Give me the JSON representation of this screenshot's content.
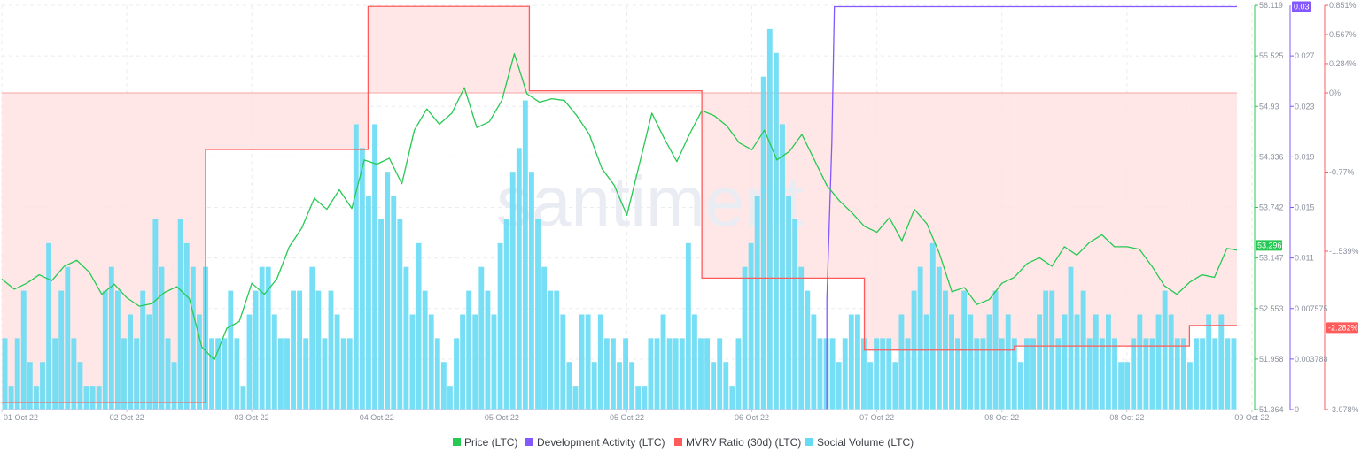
{
  "watermark": "santiment",
  "colors": {
    "price": "#26c953",
    "dev": "#8358ff",
    "mvrv": "#ff5b5b",
    "mvrv_fill": "#ffe3e3",
    "social": "#68dbf4",
    "grid": "#e9ecf0",
    "tick": "#8c929e"
  },
  "chart_data": {
    "type": "line",
    "x_tick_labels": [
      "01 Oct 22",
      "02 Oct 22",
      "03 Oct 22",
      "04 Oct 22",
      "05 Oct 22",
      "05 Oct 22",
      "06 Oct 22",
      "07 Oct 22",
      "08 Oct 22",
      "08 Oct 22",
      "09 Oct 22"
    ],
    "axes": {
      "price": {
        "ticks": [
          "56.119",
          "55.525",
          "54.93",
          "54.336",
          "53.742",
          "53.147",
          "52.553",
          "51.958",
          "51.364"
        ],
        "range": [
          51.364,
          56.119
        ]
      },
      "dev": {
        "ticks": [
          "0.03",
          "0.027",
          "0.023",
          "0.019",
          "0.015",
          "0.011",
          "0.007575",
          "0.003788",
          "0"
        ],
        "range": [
          0,
          0.03
        ]
      },
      "mvrv": {
        "ticks": [
          "0.851%",
          "0.567%",
          "0.284%",
          "0%",
          "-0.77%",
          "-1.539%",
          "-2.282%",
          "-3.078%"
        ],
        "range": [
          -3.078,
          0.851
        ]
      }
    },
    "current_values": {
      "price": "53.296",
      "dev": "0.03",
      "mvrv": "-2.282%"
    },
    "legend": [
      "Price (LTC)",
      "Development Activity (LTC)",
      "MVRV Ratio (30d) (LTC)",
      "Social Volume (LTC)"
    ],
    "grid": true,
    "legend_position": "bottom",
    "mvrv_steps": [
      {
        "x": 0,
        "v": -3.01
      },
      {
        "x": 1.63,
        "v": -0.55
      },
      {
        "x": 2.93,
        "v": 0.84
      },
      {
        "x": 4.22,
        "v": 0.02
      },
      {
        "x": 5.6,
        "v": -1.8
      },
      {
        "x": 6.9,
        "v": -2.5
      },
      {
        "x": 8.1,
        "v": -2.46
      },
      {
        "x": 9.5,
        "v": -2.26
      },
      {
        "x": 9.88,
        "v": -2.26
      }
    ],
    "dev_steps": [
      {
        "x": 0,
        "v": 0
      },
      {
        "x": 6.6,
        "v": 0
      },
      {
        "x": 6.6,
        "v": 0.0082
      },
      {
        "x": 6.64,
        "v": 0.0199
      },
      {
        "x": 6.66,
        "v": 0.0299
      },
      {
        "x": 9.88,
        "v": 0.0299
      }
    ],
    "price": [
      [
        0.0,
        52.9
      ],
      [
        0.1,
        52.78
      ],
      [
        0.2,
        52.85
      ],
      [
        0.3,
        52.95
      ],
      [
        0.4,
        52.88
      ],
      [
        0.5,
        53.05
      ],
      [
        0.6,
        53.12
      ],
      [
        0.7,
        52.98
      ],
      [
        0.8,
        52.72
      ],
      [
        0.9,
        52.84
      ],
      [
        1.0,
        52.68
      ],
      [
        1.1,
        52.58
      ],
      [
        1.2,
        52.61
      ],
      [
        1.3,
        52.74
      ],
      [
        1.4,
        52.81
      ],
      [
        1.5,
        52.67
      ],
      [
        1.6,
        52.1
      ],
      [
        1.7,
        51.95
      ],
      [
        1.8,
        52.32
      ],
      [
        1.9,
        52.4
      ],
      [
        2.0,
        52.85
      ],
      [
        2.1,
        52.72
      ],
      [
        2.2,
        52.9
      ],
      [
        2.3,
        53.28
      ],
      [
        2.4,
        53.5
      ],
      [
        2.5,
        53.85
      ],
      [
        2.6,
        53.72
      ],
      [
        2.7,
        53.95
      ],
      [
        2.8,
        53.73
      ],
      [
        2.9,
        54.3
      ],
      [
        3.0,
        54.25
      ],
      [
        3.1,
        54.32
      ],
      [
        3.2,
        54.02
      ],
      [
        3.3,
        54.65
      ],
      [
        3.4,
        54.9
      ],
      [
        3.5,
        54.72
      ],
      [
        3.6,
        54.85
      ],
      [
        3.7,
        55.15
      ],
      [
        3.8,
        54.68
      ],
      [
        3.9,
        54.75
      ],
      [
        4.0,
        55.0
      ],
      [
        4.1,
        55.55
      ],
      [
        4.2,
        55.08
      ],
      [
        4.3,
        54.98
      ],
      [
        4.4,
        55.02
      ],
      [
        4.5,
        55.0
      ],
      [
        4.6,
        54.82
      ],
      [
        4.7,
        54.6
      ],
      [
        4.8,
        54.2
      ],
      [
        4.9,
        54.0
      ],
      [
        5.0,
        53.65
      ],
      [
        5.1,
        54.25
      ],
      [
        5.2,
        54.85
      ],
      [
        5.3,
        54.55
      ],
      [
        5.4,
        54.28
      ],
      [
        5.5,
        54.6
      ],
      [
        5.6,
        54.88
      ],
      [
        5.7,
        54.82
      ],
      [
        5.8,
        54.7
      ],
      [
        5.9,
        54.5
      ],
      [
        6.0,
        54.42
      ],
      [
        6.1,
        54.65
      ],
      [
        6.2,
        54.3
      ],
      [
        6.3,
        54.4
      ],
      [
        6.4,
        54.6
      ],
      [
        6.5,
        54.3
      ],
      [
        6.6,
        54.0
      ],
      [
        6.7,
        53.82
      ],
      [
        6.8,
        53.68
      ],
      [
        6.9,
        53.52
      ],
      [
        7.0,
        53.45
      ],
      [
        7.1,
        53.62
      ],
      [
        7.2,
        53.35
      ],
      [
        7.3,
        53.72
      ],
      [
        7.4,
        53.55
      ],
      [
        7.5,
        53.2
      ],
      [
        7.6,
        52.75
      ],
      [
        7.7,
        52.8
      ],
      [
        7.8,
        52.6
      ],
      [
        7.9,
        52.66
      ],
      [
        8.0,
        52.85
      ],
      [
        8.1,
        52.92
      ],
      [
        8.2,
        53.08
      ],
      [
        8.3,
        53.15
      ],
      [
        8.4,
        53.05
      ],
      [
        8.5,
        53.28
      ],
      [
        8.6,
        53.18
      ],
      [
        8.7,
        53.33
      ],
      [
        8.8,
        53.42
      ],
      [
        8.9,
        53.28
      ],
      [
        9.0,
        53.28
      ],
      [
        9.1,
        53.25
      ],
      [
        9.2,
        53.05
      ],
      [
        9.3,
        52.82
      ],
      [
        9.4,
        52.72
      ],
      [
        9.5,
        52.86
      ],
      [
        9.6,
        52.95
      ],
      [
        9.7,
        52.92
      ],
      [
        9.8,
        53.26
      ],
      [
        9.88,
        53.24
      ]
    ],
    "social": [
      3,
      1,
      3,
      5,
      2,
      1,
      2,
      7,
      3,
      5,
      6,
      3,
      2,
      1,
      1,
      1,
      5,
      6,
      5,
      3,
      4,
      3,
      5,
      4,
      8,
      6,
      3,
      2,
      8,
      7,
      6,
      4,
      6,
      3,
      3,
      3,
      5,
      3,
      1,
      4,
      5,
      6,
      6,
      4,
      3,
      3,
      5,
      5,
      3,
      6,
      5,
      3,
      5,
      4,
      3,
      3,
      12,
      11,
      9,
      12,
      8,
      10,
      9,
      8,
      6,
      4,
      7,
      5,
      4,
      3,
      2,
      1,
      3,
      4,
      5,
      4,
      6,
      5,
      4,
      7,
      8,
      10,
      11,
      13,
      10,
      8,
      6,
      5,
      5,
      4,
      2,
      1,
      4,
      4,
      2,
      4,
      3,
      3,
      2,
      3,
      2,
      1,
      1,
      3,
      3,
      4,
      3,
      3,
      3,
      7,
      4,
      3,
      3,
      2,
      3,
      2,
      1,
      3,
      6,
      7,
      9,
      14,
      16,
      15,
      12,
      9,
      8,
      6,
      5,
      4,
      3,
      3,
      3,
      2,
      3,
      4,
      4,
      3,
      2,
      3,
      3,
      3,
      2,
      4,
      3,
      5,
      6,
      4,
      7,
      6,
      5,
      4,
      3,
      5,
      4,
      3,
      3,
      4,
      5,
      3,
      4,
      3,
      2,
      3,
      3,
      4,
      5,
      5,
      3,
      4,
      6,
      4,
      5,
      3,
      4,
      3,
      4,
      3,
      2,
      2,
      3,
      4,
      3,
      3,
      4,
      5,
      4,
      3,
      3,
      2,
      3,
      3,
      4,
      3,
      4,
      3,
      3
    ]
  }
}
